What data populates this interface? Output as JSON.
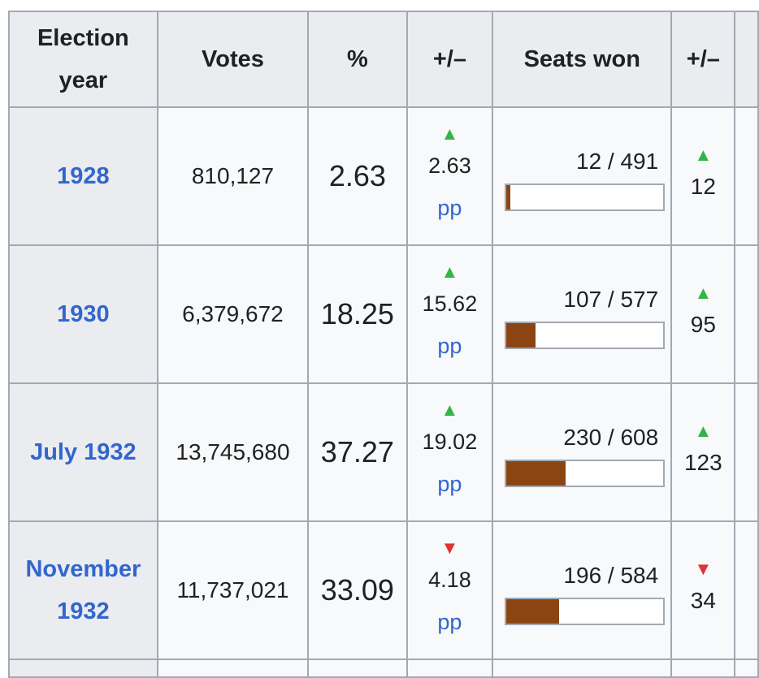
{
  "table": {
    "headers": [
      "Election year",
      "Votes",
      "%",
      "+/–",
      "Seats won",
      "+/–"
    ],
    "header_year_line1": "Election",
    "header_year_line2": "year",
    "bar_color": "#8b4513",
    "up_color": "#33b44a",
    "down_color": "#dd3333",
    "link_color": "#3366cc",
    "rows": [
      {
        "year_line1": "1928",
        "year_line2": "",
        "votes": "810,127",
        "percent": "2.63",
        "pct_change_dir": "up",
        "pct_change": "2.63",
        "pct_unit": "pp",
        "seats": "12 / 491",
        "seats_fraction": 0.024,
        "seat_change_dir": "up",
        "seat_change": "12"
      },
      {
        "year_line1": "1930",
        "year_line2": "",
        "votes": "6,379,672",
        "percent": "18.25",
        "pct_change_dir": "up",
        "pct_change": "15.62",
        "pct_unit": "pp",
        "seats": "107 / 577",
        "seats_fraction": 0.185,
        "seat_change_dir": "up",
        "seat_change": "95"
      },
      {
        "year_line1": "July 1932",
        "year_line2": "",
        "votes": "13,745,680",
        "percent": "37.27",
        "pct_change_dir": "up",
        "pct_change": "19.02",
        "pct_unit": "pp",
        "seats": "230 / 608",
        "seats_fraction": 0.378,
        "seat_change_dir": "up",
        "seat_change": "123"
      },
      {
        "year_line1": "November",
        "year_line2": "1932",
        "votes": "11,737,021",
        "percent": "33.09",
        "pct_change_dir": "down",
        "pct_change": "4.18",
        "pct_unit": "pp",
        "seats": "196 / 584",
        "seats_fraction": 0.336,
        "seat_change_dir": "down",
        "seat_change": "34"
      }
    ]
  }
}
